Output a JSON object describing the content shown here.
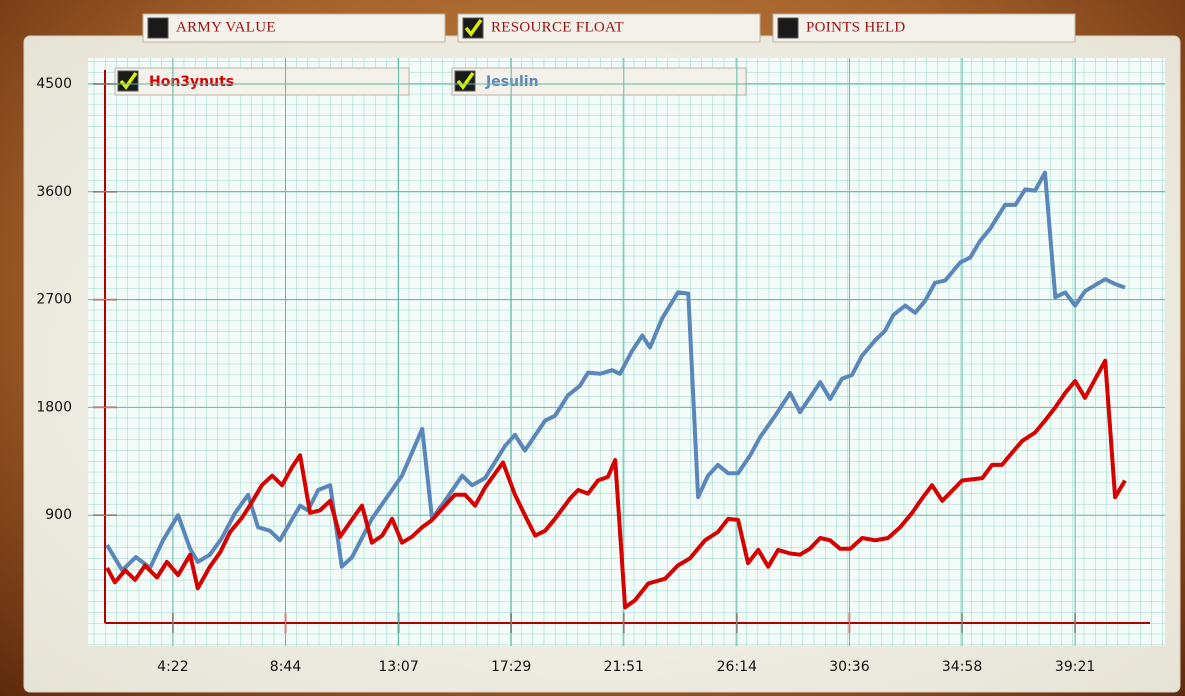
{
  "tabs": [
    {
      "label": "ARMY VALUE",
      "checked": false
    },
    {
      "label": "RESOURCE FLOAT",
      "checked": true
    },
    {
      "label": "POINTS HELD",
      "checked": false
    }
  ],
  "chart_data": {
    "type": "line",
    "xlim": [
      104,
      2512
    ],
    "ylim": [
      0,
      4700
    ],
    "xticks": [
      {
        "value": 262,
        "label": "4:22"
      },
      {
        "value": 524,
        "label": "8:44"
      },
      {
        "value": 787,
        "label": "13:07"
      },
      {
        "value": 1049,
        "label": "17:29"
      },
      {
        "value": 1311,
        "label": "21:51"
      },
      {
        "value": 1574,
        "label": "26:14"
      },
      {
        "value": 1836,
        "label": "30:36"
      },
      {
        "value": 2098,
        "label": "34:58"
      },
      {
        "value": 2361,
        "label": "39:21"
      }
    ],
    "yticks": [
      900,
      1800,
      2700,
      3600,
      4500
    ],
    "grid": true,
    "series": [
      {
        "name": "Hon3ynuts",
        "color": "#d60000",
        "visible": true,
        "x": [
          109,
          127,
          151,
          174,
          197,
          225,
          248,
          274,
          302,
          320,
          348,
          372,
          395,
          423,
          441,
          469,
          493,
          516,
          539,
          558,
          581,
          604,
          628,
          651,
          674,
          702,
          725,
          749,
          772,
          795,
          818,
          842,
          865,
          895,
          918,
          942,
          965,
          988,
          1030,
          1058,
          1081,
          1105,
          1128,
          1151,
          1186,
          1205,
          1228,
          1251,
          1274,
          1291,
          1314,
          1337,
          1368,
          1407,
          1437,
          1465,
          1500,
          1530,
          1554,
          1577,
          1600,
          1624,
          1647,
          1670,
          1698,
          1721,
          1744,
          1768,
          1791,
          1814,
          1838,
          1866,
          1896,
          1926,
          1954,
          1982,
          2005,
          2028,
          2052,
          2082,
          2098,
          2145,
          2168,
          2191,
          2214,
          2238,
          2268,
          2291,
          2315,
          2338,
          2361,
          2384,
          2431,
          2454,
          2477
        ],
        "values": [
          460,
          340,
          440,
          360,
          480,
          380,
          510,
          400,
          570,
          290,
          470,
          590,
          760,
          880,
          980,
          1150,
          1230,
          1150,
          1300,
          1400,
          920,
          940,
          1020,
          720,
          840,
          980,
          670,
          730,
          870,
          670,
          720,
          800,
          860,
          980,
          1070,
          1070,
          980,
          1130,
          1340,
          1070,
          900,
          730,
          770,
          870,
          1040,
          1110,
          1080,
          1190,
          1220,
          1360,
          130,
          190,
          330,
          370,
          480,
          540,
          690,
          760,
          870,
          860,
          500,
          610,
          470,
          610,
          580,
          570,
          620,
          710,
          690,
          620,
          620,
          710,
          690,
          710,
          800,
          920,
          1040,
          1150,
          1020,
          1130,
          1190,
          1210,
          1320,
          1320,
          1420,
          1520,
          1590,
          1690,
          1800,
          1920,
          2020,
          1880,
          2190,
          1050,
          1190
        ]
      },
      {
        "name": "Jesulin",
        "color": "#5a86b9",
        "visible": true,
        "x": [
          109,
          144,
          176,
          209,
          239,
          274,
          302,
          320,
          348,
          376,
          407,
          437,
          460,
          488,
          511,
          558,
          576,
          600,
          628,
          655,
          679,
          725,
          795,
          842,
          865,
          895,
          935,
          958,
          988,
          1035,
          1058,
          1081,
          1128,
          1151,
          1181,
          1209,
          1228,
          1256,
          1284,
          1302,
          1330,
          1354,
          1372,
          1400,
          1437,
          1461,
          1484,
          1507,
          1530,
          1554,
          1577,
          1605,
          1628,
          1663,
          1698,
          1721,
          1768,
          1791,
          1819,
          1842,
          1865,
          1896,
          1919,
          1938,
          1966,
          1989,
          2012,
          2035,
          2059,
          2094,
          2117,
          2140,
          2163,
          2198,
          2222,
          2245,
          2268,
          2291,
          2315,
          2338,
          2361,
          2384,
          2431,
          2454,
          2477
        ],
        "values": [
          650,
          440,
          550,
          460,
          690,
          900,
          620,
          510,
          570,
          710,
          920,
          1070,
          800,
          770,
          690,
          980,
          940,
          1110,
          1150,
          470,
          550,
          870,
          1230,
          1620,
          870,
          1020,
          1230,
          1150,
          1210,
          1480,
          1570,
          1440,
          1690,
          1730,
          1900,
          1980,
          2090,
          2080,
          2110,
          2080,
          2270,
          2400,
          2300,
          2540,
          2760,
          2750,
          1050,
          1230,
          1320,
          1250,
          1250,
          1400,
          1550,
          1730,
          1920,
          1760,
          2010,
          1870,
          2040,
          2070,
          2230,
          2360,
          2440,
          2570,
          2650,
          2590,
          2690,
          2840,
          2860,
          3010,
          3050,
          3190,
          3290,
          3490,
          3490,
          3620,
          3610,
          3760,
          2720,
          2760,
          2650,
          2770,
          2870,
          2830,
          2800
        ]
      }
    ]
  }
}
